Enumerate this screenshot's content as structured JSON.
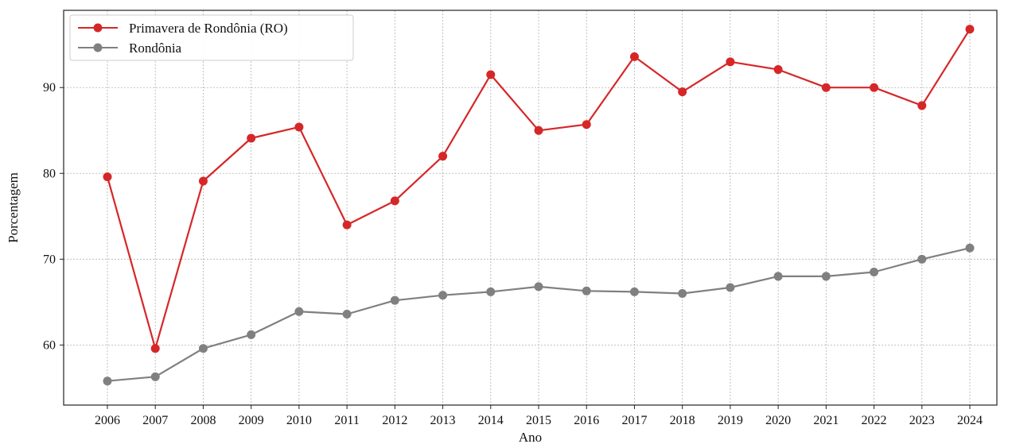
{
  "chart_data": {
    "type": "line",
    "xlabel": "Ano",
    "ylabel": "Porcentagem",
    "categories": [
      "2006",
      "2007",
      "2008",
      "2009",
      "2010",
      "2011",
      "2012",
      "2013",
      "2014",
      "2015",
      "2016",
      "2017",
      "2018",
      "2019",
      "2020",
      "2021",
      "2022",
      "2023",
      "2024"
    ],
    "series": [
      {
        "name": "Primavera de Rondônia (RO)",
        "color": "#d62728",
        "values": [
          79.6,
          59.6,
          79.1,
          84.1,
          85.4,
          74.0,
          76.8,
          82.0,
          91.5,
          85.0,
          85.7,
          93.6,
          89.5,
          93.0,
          92.1,
          90.0,
          90.0,
          87.9,
          96.8
        ]
      },
      {
        "name": "Rondônia",
        "color": "#808080",
        "values": [
          55.8,
          56.3,
          59.6,
          61.2,
          63.9,
          63.6,
          65.2,
          65.8,
          66.2,
          66.8,
          66.3,
          66.2,
          66.0,
          66.7,
          68.0,
          68.0,
          68.5,
          70.0,
          71.3
        ]
      }
    ],
    "yticks": [
      60,
      70,
      80,
      90
    ],
    "ylim": [
      53.0,
      99.0
    ],
    "grid": true,
    "legend_position": "top-left"
  }
}
